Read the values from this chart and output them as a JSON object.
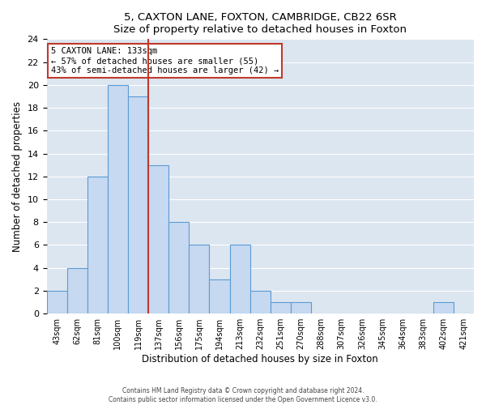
{
  "title": "5, CAXTON LANE, FOXTON, CAMBRIDGE, CB22 6SR",
  "subtitle": "Size of property relative to detached houses in Foxton",
  "xlabel": "Distribution of detached houses by size in Foxton",
  "ylabel": "Number of detached properties",
  "bar_labels": [
    "43sqm",
    "62sqm",
    "81sqm",
    "100sqm",
    "119sqm",
    "137sqm",
    "156sqm",
    "175sqm",
    "194sqm",
    "213sqm",
    "232sqm",
    "251sqm",
    "270sqm",
    "288sqm",
    "307sqm",
    "326sqm",
    "345sqm",
    "364sqm",
    "383sqm",
    "402sqm",
    "421sqm"
  ],
  "bar_values": [
    2,
    4,
    12,
    20,
    19,
    13,
    8,
    6,
    3,
    6,
    2,
    1,
    1,
    0,
    0,
    0,
    0,
    0,
    0,
    1,
    0
  ],
  "bar_color": "#c6d9f0",
  "bar_edge_color": "#5b9bd5",
  "vline_index": 4.5,
  "vline_color": "#c0392b",
  "annotation_title": "5 CAXTON LANE: 133sqm",
  "annotation_line1": "← 57% of detached houses are smaller (55)",
  "annotation_line2": "43% of semi-detached houses are larger (42) →",
  "annotation_box_color": "#ffffff",
  "annotation_box_edge": "#c0392b",
  "ylim": [
    0,
    24
  ],
  "yticks": [
    0,
    2,
    4,
    6,
    8,
    10,
    12,
    14,
    16,
    18,
    20,
    22,
    24
  ],
  "footer1": "Contains HM Land Registry data © Crown copyright and database right 2024.",
  "footer2": "Contains public sector information licensed under the Open Government Licence v3.0.",
  "bg_color": "#ffffff",
  "grid_color": "#ffffff",
  "plot_bg_color": "#dce6f1"
}
